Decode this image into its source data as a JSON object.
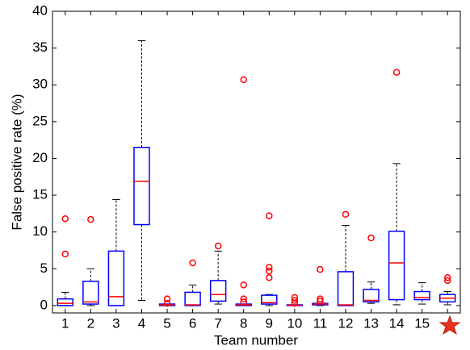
{
  "chart_data": {
    "type": "box",
    "xlabel": "Team number",
    "ylabel": "False positive rate (%)",
    "categories": [
      "1",
      "2",
      "3",
      "4",
      "5",
      "6",
      "7",
      "8",
      "9",
      "10",
      "11",
      "12",
      "13",
      "14",
      "15",
      null
    ],
    "box_color": "#0000ff",
    "median_color": "#ff0000",
    "outlier_color": "#ff0000",
    "whisker_color": "#000000",
    "ylim": [
      -1,
      40
    ],
    "yticks": [
      0,
      5,
      10,
      15,
      20,
      25,
      30,
      35,
      40
    ],
    "boxes": [
      {
        "min": 0,
        "q1": 0,
        "median": 0.3,
        "q3": 0.9,
        "max": 1.8,
        "outliers": [
          11.8,
          7
        ]
      },
      {
        "min": 0,
        "q1": 0.2,
        "median": 0.5,
        "q3": 3.3,
        "max": 5,
        "outliers": [
          11.7
        ]
      },
      {
        "min": 0,
        "q1": 0,
        "median": 1.2,
        "q3": 7.4,
        "max": 14.4,
        "outliers": []
      },
      {
        "min": 0.7,
        "q1": 11,
        "median": 16.9,
        "q3": 21.5,
        "max": 36,
        "outliers": []
      },
      {
        "min": 0,
        "q1": 0,
        "median": 0.1,
        "q3": 0.2,
        "max": 0.2,
        "outliers": [
          0.9,
          0.3
        ]
      },
      {
        "min": 0,
        "q1": 0,
        "median": 0.1,
        "q3": 1.8,
        "max": 2.8,
        "outliers": [
          5.8
        ]
      },
      {
        "min": 0.2,
        "q1": 0.6,
        "median": 1.5,
        "q3": 3.4,
        "max": 7.4,
        "outliers": [
          8.1
        ]
      },
      {
        "min": 0,
        "q1": 0,
        "median": 0.1,
        "q3": 0.2,
        "max": 0.2,
        "outliers": [
          30.7,
          2.8,
          0.9,
          0.5
        ]
      },
      {
        "min": 0,
        "q1": 0.2,
        "median": 0.4,
        "q3": 1.4,
        "max": 1.5,
        "outliers": [
          12.2,
          5.2,
          4.7,
          3.8
        ]
      },
      {
        "min": 0,
        "q1": 0,
        "median": 0.05,
        "q3": 0.1,
        "max": 0.1,
        "outliers": [
          1.1,
          0.7,
          0.3
        ]
      },
      {
        "min": 0,
        "q1": 0.1,
        "median": 0.2,
        "q3": 0.3,
        "max": 0.3,
        "outliers": [
          4.9,
          0.9,
          0.6
        ]
      },
      {
        "min": 0,
        "q1": 0,
        "median": 0.1,
        "q3": 4.6,
        "max": 10.9,
        "outliers": [
          12.4
        ]
      },
      {
        "min": 0.3,
        "q1": 0.5,
        "median": 0.7,
        "q3": 2.2,
        "max": 3.2,
        "outliers": [
          9.2
        ]
      },
      {
        "min": 0.1,
        "q1": 0.8,
        "median": 5.8,
        "q3": 10.1,
        "max": 19.3,
        "outliers": [
          31.7
        ]
      },
      {
        "min": 0.2,
        "q1": 0.8,
        "median": 1.1,
        "q3": 1.9,
        "max": 3.1,
        "outliers": []
      },
      {
        "min": 0.1,
        "q1": 0.5,
        "median": 1.0,
        "q3": 1.5,
        "max": 1.9,
        "outliers": [
          3.8,
          3.4
        ]
      }
    ]
  }
}
